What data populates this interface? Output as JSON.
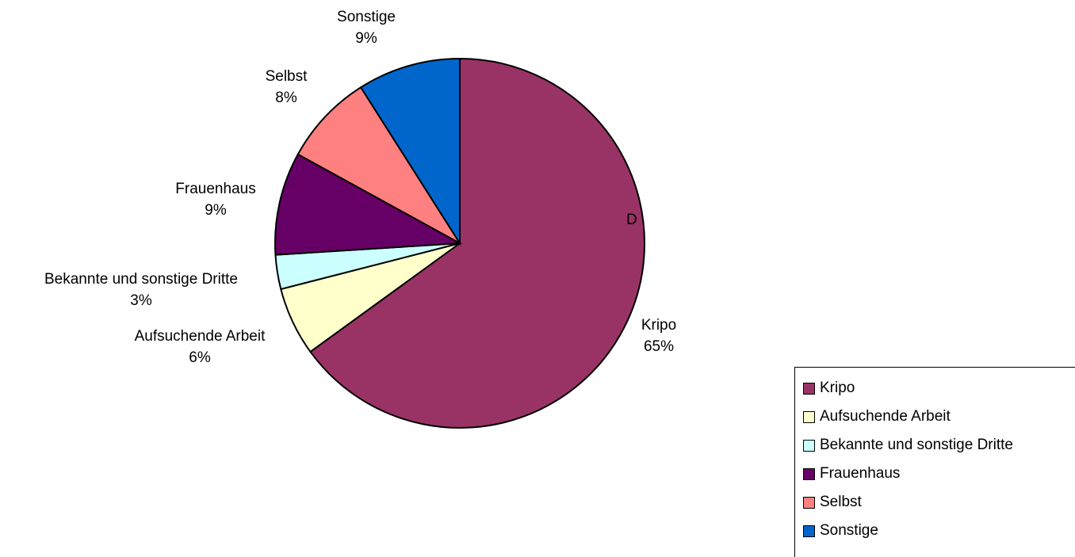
{
  "chart_data": {
    "type": "pie",
    "title": "",
    "slices": [
      {
        "label": "Kripo",
        "value": 65,
        "display": "65%",
        "color": "#993366"
      },
      {
        "label": "Aufsuchende Arbeit",
        "value": 6,
        "display": "6%",
        "color": "#ffffcc"
      },
      {
        "label": "Bekannte und sonstige Dritte",
        "value": 3,
        "display": "3%",
        "color": "#ccffff"
      },
      {
        "label": "Frauenhaus",
        "value": 9,
        "display": "9%",
        "color": "#660066"
      },
      {
        "label": "Selbst",
        "value": 8,
        "display": "8%",
        "color": "#ff8080"
      },
      {
        "label": "Sonstige",
        "value": 9,
        "display": "9%",
        "color": "#0066cc"
      }
    ],
    "legend": {
      "position": "bottom-right",
      "items": [
        "Kripo",
        "Aufsuchende Arbeit",
        "Bekannte und sonstige Dritte",
        "Frauenhaus",
        "Selbst",
        "Sonstige"
      ]
    },
    "stray_label": "D"
  }
}
